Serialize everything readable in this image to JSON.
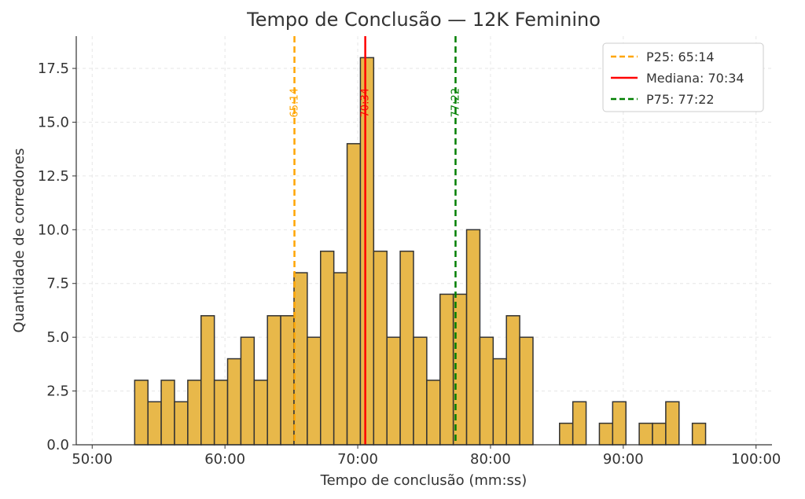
{
  "chart_data": {
    "type": "bar",
    "title": "Tempo de Conclusão — 12K Feminino",
    "xlabel": "Tempo de conclusão (mm:ss)",
    "ylabel": "Quantidade de corredores",
    "xlim": [
      48.8,
      101.2
    ],
    "ylim": [
      0,
      19
    ],
    "x_ticks": [
      {
        "value": 50,
        "label": "50:00"
      },
      {
        "value": 60,
        "label": "60:00"
      },
      {
        "value": 70,
        "label": "70:00"
      },
      {
        "value": 80,
        "label": "80:00"
      },
      {
        "value": 90,
        "label": "90:00"
      },
      {
        "value": 100,
        "label": "100:00"
      }
    ],
    "y_ticks": [
      {
        "value": 0,
        "label": "0.0"
      },
      {
        "value": 2.5,
        "label": "2.5"
      },
      {
        "value": 5,
        "label": "5.0"
      },
      {
        "value": 7.5,
        "label": "7.5"
      },
      {
        "value": 10,
        "label": "10.0"
      },
      {
        "value": 12.5,
        "label": "12.5"
      },
      {
        "value": 15,
        "label": "15.0"
      },
      {
        "value": 17.5,
        "label": "17.5"
      }
    ],
    "grid": true,
    "bins": {
      "start": 53.2,
      "width": 1.0,
      "counts": [
        3,
        2,
        3,
        2,
        3,
        6,
        3,
        4,
        5,
        3,
        6,
        6,
        8,
        5,
        9,
        8,
        14,
        18,
        9,
        5,
        9,
        5,
        3,
        7,
        7,
        10,
        5,
        4,
        6,
        5,
        0,
        0,
        1,
        2,
        0,
        1,
        2,
        0,
        1,
        1,
        2,
        0,
        1
      ]
    },
    "bar_color": "#E8B84A",
    "bar_edge_color": "#333333",
    "reference_lines": [
      {
        "name": "P25",
        "value": 65.233,
        "label": "65:14",
        "legend": "P25: 65:14",
        "color": "#FFA500",
        "style": "dashed"
      },
      {
        "name": "Mediana",
        "value": 70.567,
        "label": "70:34",
        "legend": "Mediana: 70:34",
        "color": "#FF0000",
        "style": "solid"
      },
      {
        "name": "P75",
        "value": 77.367,
        "label": "77:22",
        "legend": "P75: 77:22",
        "color": "#007F00",
        "style": "dashed"
      }
    ],
    "legend_position": "top-right"
  }
}
